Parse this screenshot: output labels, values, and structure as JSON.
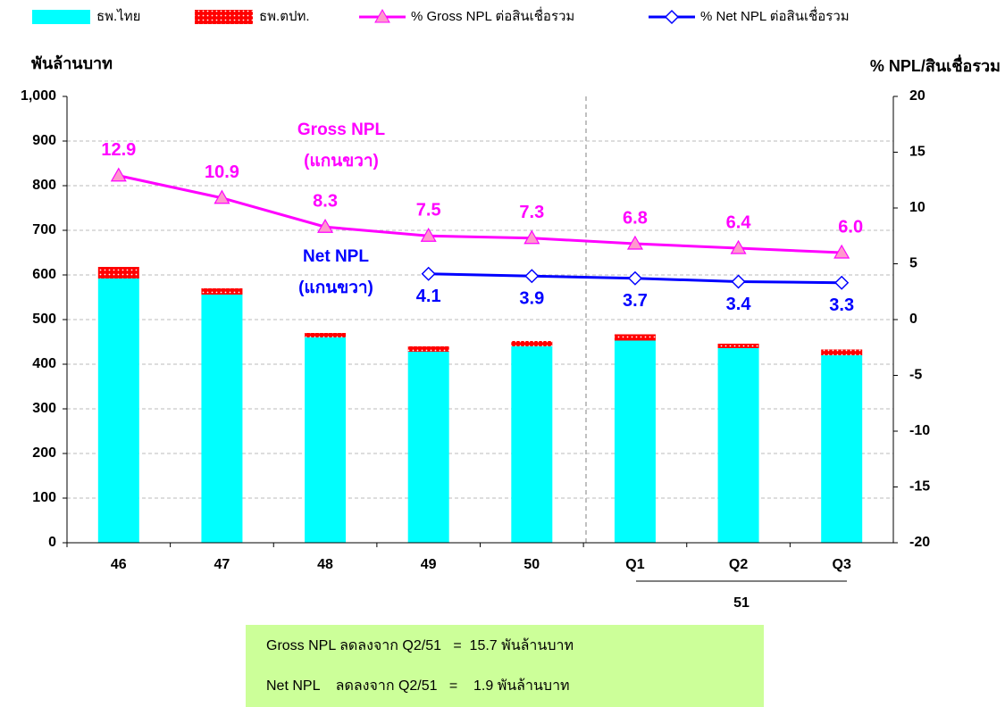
{
  "chart_data": {
    "type": "bar",
    "legend_position": "top",
    "ylabel": "พันล้านบาท",
    "y2label": "% NPL/สินเชื่อรวม",
    "categories": [
      "46",
      "47",
      "48",
      "49",
      "50",
      "Q1",
      "Q2",
      "Q3"
    ],
    "group_label": "51",
    "ylim": [
      0,
      1000
    ],
    "yticks": [
      0,
      100,
      200,
      300,
      400,
      500,
      600,
      700,
      800,
      900,
      {
        "value": 1000,
        "label": "1,000"
      }
    ],
    "y2lim": [
      -20,
      20
    ],
    "y2ticks": [
      -20,
      -15,
      -10,
      -5,
      0,
      5,
      10,
      15,
      20
    ],
    "grid": true,
    "series": [
      {
        "name": "ธพ.ไทย",
        "type": "bar",
        "color": "#00ffff",
        "values": [
          592,
          556,
          460,
          428,
          440,
          453,
          436,
          420
        ]
      },
      {
        "name": "ธพ.ตปท.",
        "type": "bar",
        "color": "#ff0000",
        "values": [
          26,
          14,
          10,
          12,
          12,
          14,
          10,
          13
        ]
      },
      {
        "name": "% Gross NPL ต่อสินเชื่อรวม",
        "type": "line",
        "axis": "y2",
        "color": "#ff00ff",
        "values": [
          12.9,
          10.9,
          8.3,
          7.5,
          7.3,
          6.8,
          6.4,
          6.0
        ],
        "value_labels": [
          "12.9",
          "10.9",
          "8.3",
          "7.5",
          "7.3",
          "6.8",
          "6.4",
          "6.0"
        ]
      },
      {
        "name": "% Net NPL ต่อสินเชื่อรวม",
        "type": "line",
        "axis": "y2",
        "color": "#0000ff",
        "values": [
          null,
          null,
          null,
          4.1,
          3.9,
          3.7,
          3.4,
          3.3
        ],
        "value_labels": [
          null,
          null,
          null,
          "4.1",
          "3.9",
          "3.7",
          "3.4",
          "3.3"
        ]
      }
    ],
    "annotations": [
      "Gross NPL",
      "(แกนขวา)",
      "Net NPL",
      "(แกนขวา)"
    ],
    "notes": [
      "Gross NPL ลดลงจาก Q2/51   =  15.7 พันล้านบาท",
      "Net NPL    ลดลงจาก Q2/51   =    1.9 พันล้านบาท"
    ]
  }
}
